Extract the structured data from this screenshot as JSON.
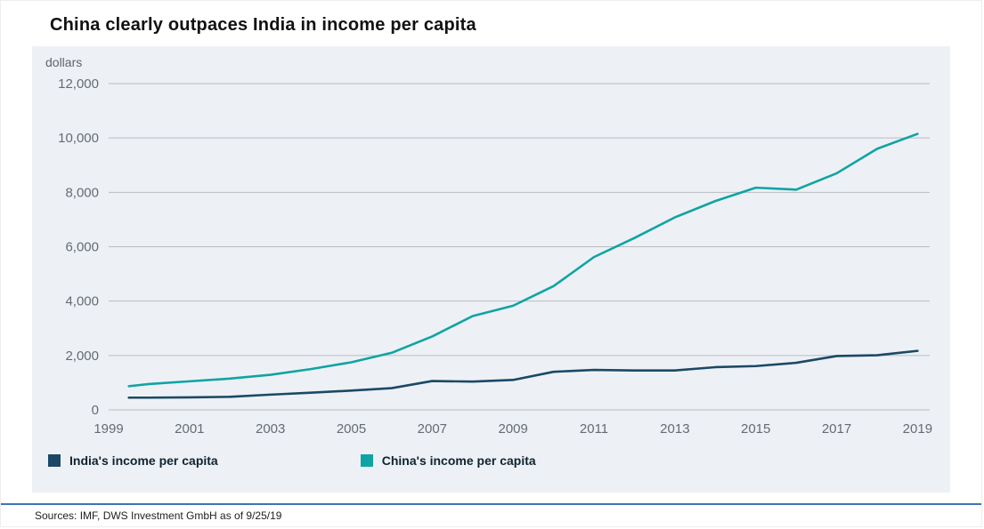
{
  "title": "China clearly outpaces India in income per capita",
  "unit_label": "dollars",
  "source": "Sources: IMF, DWS Investment GmbH as of 9/25/19",
  "colors": {
    "plot_bg": "#edf1f6",
    "grid": "#b9bdc2",
    "axis_text": "#666b72",
    "india": "#1b4965",
    "china": "#11a3a3",
    "source_rule": "#3a74b8"
  },
  "legend": {
    "items": [
      {
        "label": "India's income per capita"
      },
      {
        "label": "China's income per capita"
      }
    ]
  },
  "chart_data": {
    "type": "line",
    "title": "China clearly outpaces India in income per capita",
    "xlabel": "",
    "ylabel": "dollars",
    "grid": true,
    "legend_position": "bottom",
    "xlim": [
      1999,
      2019.3
    ],
    "ylim": [
      0,
      12000
    ],
    "x_ticks": [
      1999,
      2001,
      2003,
      2005,
      2007,
      2009,
      2011,
      2013,
      2015,
      2017,
      2019
    ],
    "y_ticks": [
      0,
      2000,
      4000,
      6000,
      8000,
      10000,
      12000
    ],
    "x": [
      1999.5,
      2000,
      2001,
      2002,
      2003,
      2004,
      2005,
      2006,
      2007,
      2008,
      2009,
      2010,
      2011,
      2012,
      2013,
      2014,
      2015,
      2016,
      2017,
      2018,
      2019
    ],
    "series": [
      {
        "name": "India's income per capita",
        "color": "#1b4965",
        "values": [
          450,
          450,
          460,
          480,
          560,
          630,
          710,
          800,
          1060,
          1040,
          1100,
          1400,
          1470,
          1450,
          1450,
          1570,
          1610,
          1730,
          1980,
          2010,
          2170
        ]
      },
      {
        "name": "China's income per capita",
        "color": "#11a3a3",
        "values": [
          870,
          950,
          1050,
          1150,
          1290,
          1500,
          1750,
          2100,
          2700,
          3450,
          3830,
          4550,
          5620,
          6320,
          7080,
          7680,
          8170,
          8100,
          8700,
          9600,
          10150
        ]
      }
    ]
  }
}
